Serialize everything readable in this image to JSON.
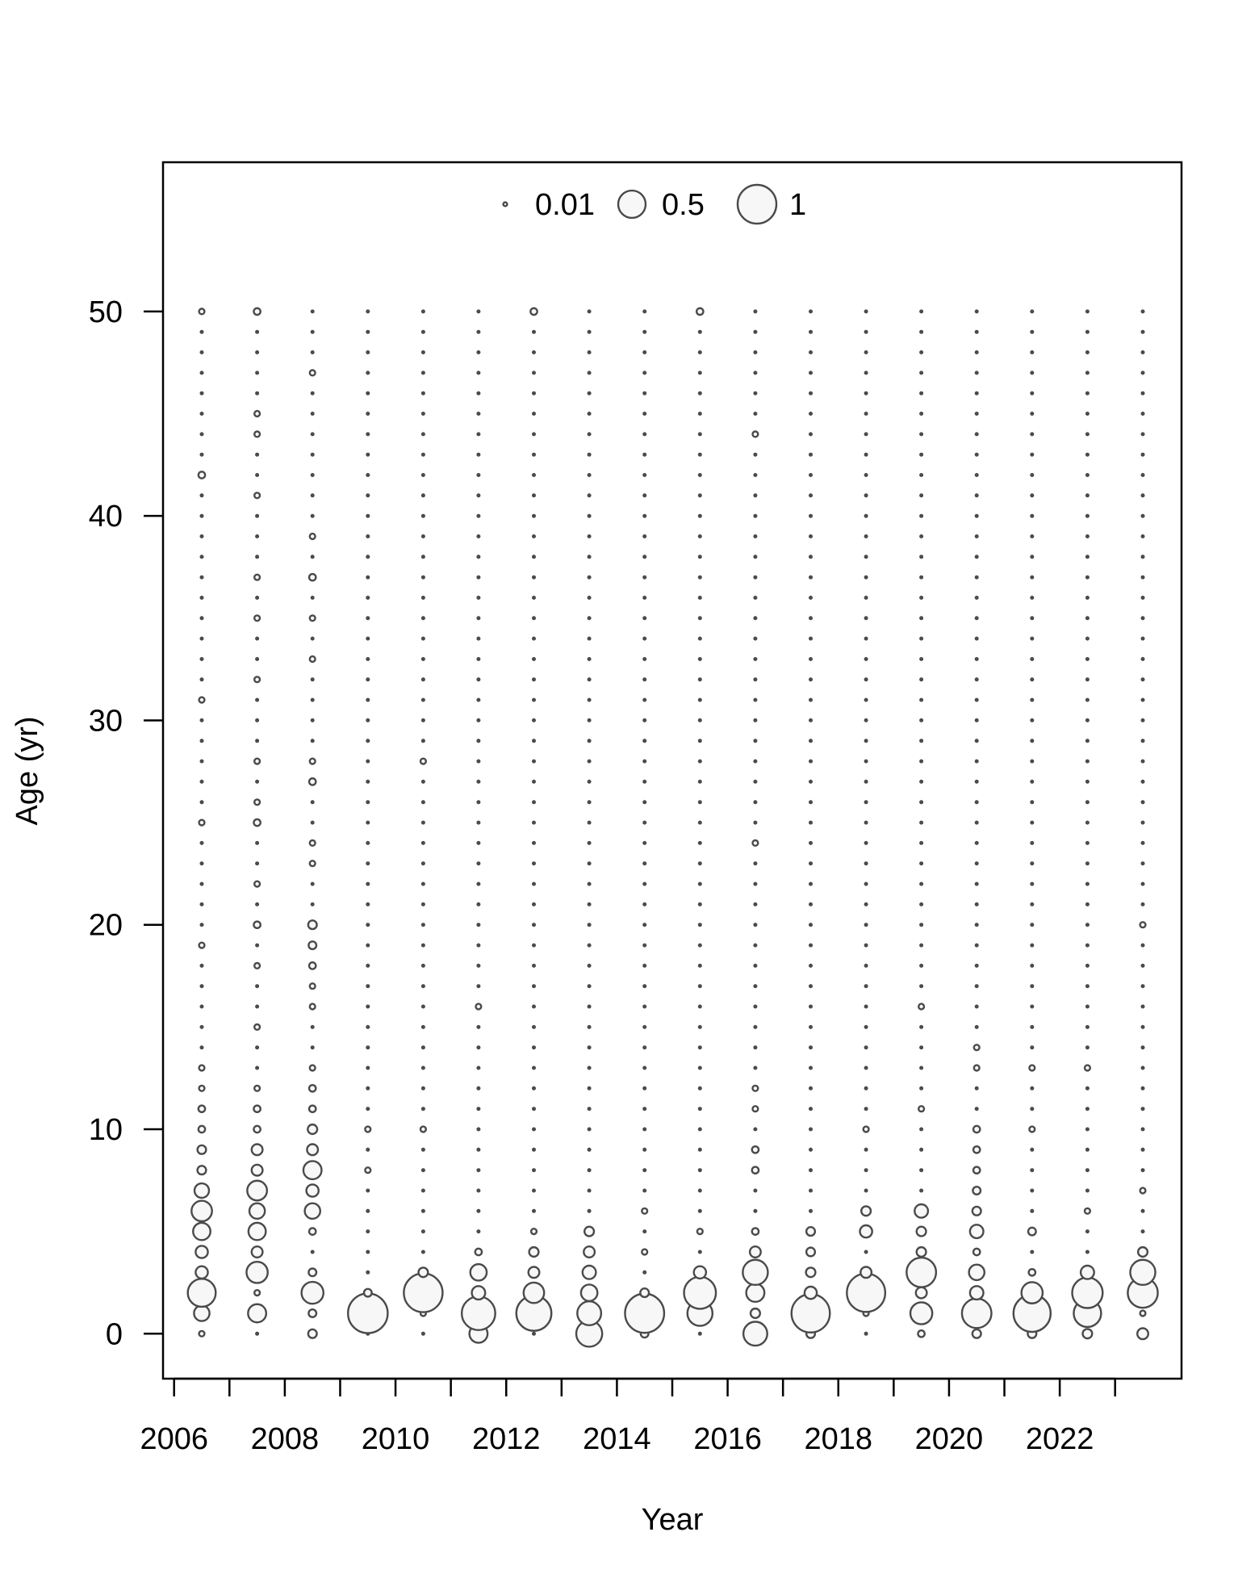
{
  "chart_data": {
    "type": "bubble",
    "xlabel": "Year",
    "ylabel": "Age (yr)",
    "xlim": [
      2005.8,
      2024.2
    ],
    "ylim": [
      -2.2,
      57.3
    ],
    "x_ticks": [
      2006,
      2007,
      2008,
      2009,
      2010,
      2011,
      2012,
      2013,
      2014,
      2015,
      2016,
      2017,
      2018,
      2019,
      2020,
      2021,
      2022,
      2023
    ],
    "x_tick_labels": [
      "2006",
      "",
      "2008",
      "",
      "2010",
      "",
      "2012",
      "",
      "2014",
      "",
      "2016",
      "",
      "2018",
      "",
      "2020",
      "",
      "2022",
      ""
    ],
    "y_ticks": [
      0,
      10,
      20,
      30,
      40,
      50
    ],
    "y_tick_labels": [
      "0",
      "10",
      "20",
      "30",
      "40",
      "50"
    ],
    "legend": {
      "position": "top-center",
      "entries": [
        {
          "label": "0.01",
          "value": 0.01
        },
        {
          "label": "0.5",
          "value": 0.5
        },
        {
          "label": "1",
          "value": 1
        }
      ]
    },
    "years": [
      2006.5,
      2007.5,
      2008.5,
      2009.5,
      2010.5,
      2011.5,
      2012.5,
      2013.5,
      2014.5,
      2015.5,
      2016.5,
      2017.5,
      2018.5,
      2019.5,
      2020.5,
      2021.5,
      2022.5,
      2023.5
    ],
    "ages": [
      0,
      1,
      2,
      3,
      4,
      5,
      6,
      7,
      8,
      9,
      10,
      11,
      12,
      13,
      14,
      15,
      16,
      17,
      18,
      19,
      20,
      21,
      22,
      23,
      24,
      25,
      26,
      27,
      28,
      29,
      30,
      31,
      32,
      33,
      34,
      35,
      36,
      37,
      38,
      39,
      40,
      41,
      42,
      43,
      44,
      45,
      46,
      47,
      48,
      49,
      50
    ],
    "baseline_value": 0.003,
    "points": [
      [
        2006.5,
        0,
        0.02
      ],
      [
        2006.5,
        1,
        0.16
      ],
      [
        2006.5,
        2,
        0.52
      ],
      [
        2006.5,
        3,
        0.1
      ],
      [
        2006.5,
        4,
        0.1
      ],
      [
        2006.5,
        5,
        0.2
      ],
      [
        2006.5,
        6,
        0.28
      ],
      [
        2006.5,
        7,
        0.14
      ],
      [
        2006.5,
        8,
        0.05
      ],
      [
        2006.5,
        9,
        0.05
      ],
      [
        2006.5,
        10,
        0.03
      ],
      [
        2006.5,
        11,
        0.03
      ],
      [
        2006.5,
        12,
        0.02
      ],
      [
        2006.5,
        13,
        0.02
      ],
      [
        2006.5,
        19,
        0.02
      ],
      [
        2006.5,
        25,
        0.02
      ],
      [
        2006.5,
        31,
        0.02
      ],
      [
        2006.5,
        42,
        0.03
      ],
      [
        2006.5,
        50,
        0.02
      ],
      [
        2007.5,
        1,
        0.22
      ],
      [
        2007.5,
        2,
        0.02
      ],
      [
        2007.5,
        3,
        0.3
      ],
      [
        2007.5,
        4,
        0.08
      ],
      [
        2007.5,
        5,
        0.2
      ],
      [
        2007.5,
        6,
        0.16
      ],
      [
        2007.5,
        7,
        0.26
      ],
      [
        2007.5,
        8,
        0.08
      ],
      [
        2007.5,
        9,
        0.08
      ],
      [
        2007.5,
        10,
        0.03
      ],
      [
        2007.5,
        11,
        0.03
      ],
      [
        2007.5,
        12,
        0.02
      ],
      [
        2007.5,
        15,
        0.02
      ],
      [
        2007.5,
        18,
        0.02
      ],
      [
        2007.5,
        20,
        0.03
      ],
      [
        2007.5,
        22,
        0.02
      ],
      [
        2007.5,
        25,
        0.03
      ],
      [
        2007.5,
        26,
        0.02
      ],
      [
        2007.5,
        28,
        0.02
      ],
      [
        2007.5,
        32,
        0.02
      ],
      [
        2007.5,
        35,
        0.02
      ],
      [
        2007.5,
        37,
        0.02
      ],
      [
        2007.5,
        41,
        0.02
      ],
      [
        2007.5,
        44,
        0.02
      ],
      [
        2007.5,
        45,
        0.02
      ],
      [
        2007.5,
        50,
        0.03
      ],
      [
        2008.5,
        0,
        0.05
      ],
      [
        2008.5,
        1,
        0.04
      ],
      [
        2008.5,
        2,
        0.32
      ],
      [
        2008.5,
        3,
        0.04
      ],
      [
        2008.5,
        5,
        0.03
      ],
      [
        2008.5,
        6,
        0.16
      ],
      [
        2008.5,
        7,
        0.1
      ],
      [
        2008.5,
        8,
        0.22
      ],
      [
        2008.5,
        9,
        0.08
      ],
      [
        2008.5,
        10,
        0.06
      ],
      [
        2008.5,
        11,
        0.03
      ],
      [
        2008.5,
        12,
        0.03
      ],
      [
        2008.5,
        13,
        0.02
      ],
      [
        2008.5,
        16,
        0.02
      ],
      [
        2008.5,
        17,
        0.02
      ],
      [
        2008.5,
        18,
        0.03
      ],
      [
        2008.5,
        19,
        0.04
      ],
      [
        2008.5,
        20,
        0.05
      ],
      [
        2008.5,
        23,
        0.02
      ],
      [
        2008.5,
        24,
        0.02
      ],
      [
        2008.5,
        27,
        0.03
      ],
      [
        2008.5,
        28,
        0.02
      ],
      [
        2008.5,
        33,
        0.02
      ],
      [
        2008.5,
        35,
        0.02
      ],
      [
        2008.5,
        37,
        0.03
      ],
      [
        2008.5,
        39,
        0.02
      ],
      [
        2008.5,
        47,
        0.02
      ],
      [
        2009.5,
        1,
        1.05
      ],
      [
        2009.5,
        2,
        0.04
      ],
      [
        2009.5,
        8,
        0.02
      ],
      [
        2009.5,
        10,
        0.02
      ],
      [
        2010.5,
        1,
        0.02
      ],
      [
        2010.5,
        2,
        1.0
      ],
      [
        2010.5,
        3,
        0.06
      ],
      [
        2010.5,
        10,
        0.02
      ],
      [
        2010.5,
        28,
        0.02
      ],
      [
        2011.5,
        0,
        0.22
      ],
      [
        2011.5,
        1,
        0.75
      ],
      [
        2011.5,
        2,
        0.12
      ],
      [
        2011.5,
        3,
        0.18
      ],
      [
        2011.5,
        4,
        0.03
      ],
      [
        2011.5,
        16,
        0.02
      ],
      [
        2012.5,
        1,
        0.82
      ],
      [
        2012.5,
        2,
        0.28
      ],
      [
        2012.5,
        3,
        0.08
      ],
      [
        2012.5,
        4,
        0.06
      ],
      [
        2012.5,
        5,
        0.02
      ],
      [
        2012.5,
        50,
        0.03
      ],
      [
        2013.5,
        0,
        0.45
      ],
      [
        2013.5,
        1,
        0.38
      ],
      [
        2013.5,
        2,
        0.18
      ],
      [
        2013.5,
        3,
        0.12
      ],
      [
        2013.5,
        4,
        0.08
      ],
      [
        2013.5,
        5,
        0.06
      ],
      [
        2014.5,
        0,
        0.04
      ],
      [
        2014.5,
        1,
        1.02
      ],
      [
        2014.5,
        2,
        0.05
      ],
      [
        2014.5,
        4,
        0.02
      ],
      [
        2014.5,
        6,
        0.02
      ],
      [
        2015.5,
        1,
        0.42
      ],
      [
        2015.5,
        2,
        0.68
      ],
      [
        2015.5,
        3,
        0.1
      ],
      [
        2015.5,
        5,
        0.02
      ],
      [
        2015.5,
        50,
        0.03
      ],
      [
        2016.5,
        0,
        0.38
      ],
      [
        2016.5,
        1,
        0.06
      ],
      [
        2016.5,
        2,
        0.22
      ],
      [
        2016.5,
        3,
        0.42
      ],
      [
        2016.5,
        4,
        0.08
      ],
      [
        2016.5,
        5,
        0.03
      ],
      [
        2016.5,
        8,
        0.03
      ],
      [
        2016.5,
        9,
        0.03
      ],
      [
        2016.5,
        11,
        0.02
      ],
      [
        2016.5,
        12,
        0.02
      ],
      [
        2016.5,
        24,
        0.02
      ],
      [
        2016.5,
        44,
        0.02
      ],
      [
        2017.5,
        0,
        0.05
      ],
      [
        2017.5,
        1,
        0.98
      ],
      [
        2017.5,
        2,
        0.1
      ],
      [
        2017.5,
        3,
        0.06
      ],
      [
        2017.5,
        4,
        0.05
      ],
      [
        2017.5,
        5,
        0.05
      ],
      [
        2018.5,
        1,
        0.02
      ],
      [
        2018.5,
        2,
        0.98
      ],
      [
        2018.5,
        3,
        0.08
      ],
      [
        2018.5,
        5,
        0.1
      ],
      [
        2018.5,
        6,
        0.06
      ],
      [
        2018.5,
        10,
        0.02
      ],
      [
        2019.5,
        0,
        0.03
      ],
      [
        2019.5,
        1,
        0.32
      ],
      [
        2019.5,
        2,
        0.08
      ],
      [
        2019.5,
        3,
        0.58
      ],
      [
        2019.5,
        4,
        0.06
      ],
      [
        2019.5,
        5,
        0.06
      ],
      [
        2019.5,
        6,
        0.12
      ],
      [
        2019.5,
        11,
        0.02
      ],
      [
        2019.5,
        16,
        0.02
      ],
      [
        2020.5,
        0,
        0.05
      ],
      [
        2020.5,
        1,
        0.58
      ],
      [
        2020.5,
        2,
        0.12
      ],
      [
        2020.5,
        3,
        0.16
      ],
      [
        2020.5,
        4,
        0.03
      ],
      [
        2020.5,
        5,
        0.12
      ],
      [
        2020.5,
        6,
        0.05
      ],
      [
        2020.5,
        7,
        0.04
      ],
      [
        2020.5,
        8,
        0.03
      ],
      [
        2020.5,
        9,
        0.03
      ],
      [
        2020.5,
        10,
        0.03
      ],
      [
        2020.5,
        13,
        0.02
      ],
      [
        2020.5,
        14,
        0.02
      ],
      [
        2021.5,
        0,
        0.05
      ],
      [
        2021.5,
        1,
        0.92
      ],
      [
        2021.5,
        2,
        0.3
      ],
      [
        2021.5,
        3,
        0.03
      ],
      [
        2021.5,
        5,
        0.04
      ],
      [
        2021.5,
        10,
        0.02
      ],
      [
        2021.5,
        13,
        0.02
      ],
      [
        2022.5,
        0,
        0.06
      ],
      [
        2022.5,
        1,
        0.5
      ],
      [
        2022.5,
        2,
        0.62
      ],
      [
        2022.5,
        3,
        0.12
      ],
      [
        2022.5,
        6,
        0.02
      ],
      [
        2022.5,
        13,
        0.02
      ],
      [
        2023.5,
        0,
        0.08
      ],
      [
        2023.5,
        1,
        0.02
      ],
      [
        2023.5,
        2,
        0.6
      ],
      [
        2023.5,
        3,
        0.42
      ],
      [
        2023.5,
        4,
        0.06
      ],
      [
        2023.5,
        7,
        0.02
      ],
      [
        2023.5,
        20,
        0.02
      ]
    ]
  }
}
